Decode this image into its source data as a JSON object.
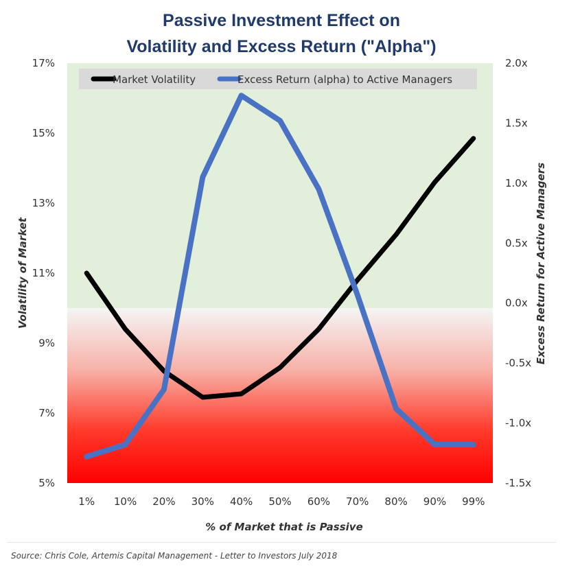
{
  "chart_data": {
    "type": "line",
    "title_lines": [
      "Passive Investment Effect on",
      "Volatility and Excess Return (\"Alpha\")"
    ],
    "categories": [
      "1%",
      "10%",
      "20%",
      "30%",
      "40%",
      "50%",
      "60%",
      "70%",
      "80%",
      "90%",
      "99%"
    ],
    "xlabel": "% of Market that is Passive",
    "ylabel": "Volatility of Market",
    "y2label": "Excess Return for Active Managers",
    "ylim": [
      5,
      17
    ],
    "y_ticks": [
      5,
      7,
      9,
      11,
      13,
      15,
      17
    ],
    "y_tick_labels": [
      "5%",
      "7%",
      "9%",
      "11%",
      "13%",
      "15%",
      "17%"
    ],
    "y2lim": [
      -1.5,
      2.0
    ],
    "y2_ticks": [
      -1.5,
      -1.0,
      -0.5,
      0.0,
      0.5,
      1.0,
      1.5,
      2.0
    ],
    "y2_tick_labels": [
      "-1.5x",
      "-1.0x",
      "-0.5x",
      "0.0x",
      "0.5x",
      "1.0x",
      "1.5x",
      "2.0x"
    ],
    "background_split_value": 10,
    "series": [
      {
        "name": "Market Volatility",
        "axis": "left",
        "color": "#000000",
        "values": [
          11.0,
          9.4,
          8.2,
          7.45,
          7.55,
          8.3,
          9.4,
          10.8,
          12.1,
          13.6,
          14.85
        ]
      },
      {
        "name": "Excess Return (alpha) to Active Managers",
        "axis": "right",
        "color": "#4a72c4",
        "values": [
          -1.28,
          -1.18,
          -0.72,
          1.05,
          1.73,
          1.52,
          0.95,
          0.07,
          -0.88,
          -1.18,
          -1.18
        ]
      }
    ],
    "legend_position": "top-center",
    "colors": {
      "top_zone": "#e2efda",
      "bottom_zone": "#ff0000",
      "title": "#1f3a6b"
    }
  },
  "source": "Source: Chris Cole, Artemis Capital Management - Letter to Investors July 2018"
}
